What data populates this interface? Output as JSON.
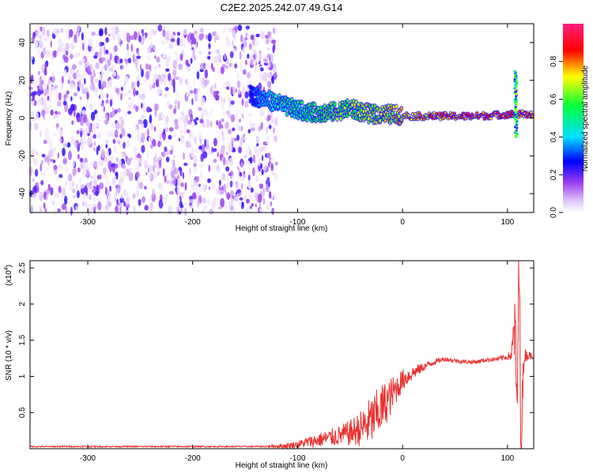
{
  "title": "C2E2.2025.242.07.49.G14",
  "chart_data": [
    {
      "type": "heatmap",
      "title": "C2E2.2025.242.07.49.G14",
      "xlabel": "Height of straight line (km)",
      "ylabel": "Frequency (Hz)",
      "xlim": [
        -355,
        125
      ],
      "ylim": [
        -50,
        50
      ],
      "xticks": [
        -300,
        -200,
        -100,
        0,
        100
      ],
      "yticks": [
        -40,
        -20,
        0,
        20,
        40
      ],
      "colorbar": {
        "label": "Normalized spectral amplitude",
        "range": [
          0,
          1
        ],
        "ticks": [
          "0.0",
          "0.2",
          "0.4",
          "0.6",
          "0.8"
        ],
        "colors": [
          "#ffffff",
          "#9a3cf0",
          "#0000ff",
          "#00e0ff",
          "#00ff40",
          "#ffff00",
          "#ff0000",
          "#ff2080"
        ]
      },
      "noise_region": {
        "x": [
          -355,
          -120
        ],
        "y": [
          -50,
          48
        ],
        "amplitude": [
          0.02,
          0.25
        ]
      },
      "ridge": [
        {
          "x": -145,
          "f": 12,
          "amp": 0.3
        },
        {
          "x": -130,
          "f": 10,
          "amp": 0.45
        },
        {
          "x": -110,
          "f": 6,
          "amp": 0.55
        },
        {
          "x": -90,
          "f": 3,
          "amp": 0.6
        },
        {
          "x": -70,
          "f": 3,
          "amp": 0.65
        },
        {
          "x": -50,
          "f": 5,
          "amp": 0.7
        },
        {
          "x": -30,
          "f": 2,
          "amp": 0.75
        },
        {
          "x": -10,
          "f": 2,
          "amp": 0.8
        },
        {
          "x": 10,
          "f": 1,
          "amp": 0.85
        },
        {
          "x": 40,
          "f": 1,
          "amp": 0.92
        },
        {
          "x": 70,
          "f": 1,
          "amp": 0.95
        },
        {
          "x": 100,
          "f": 2,
          "amp": 0.95
        },
        {
          "x": 125,
          "f": 2,
          "amp": 0.95
        }
      ],
      "excursion": {
        "x": 108,
        "f_range": [
          -10,
          25
        ]
      }
    },
    {
      "type": "line",
      "xlabel": "Height of straight line (km)",
      "ylabel": "SNR (10 * v/v)",
      "scale_label": "(x10",
      "scale_exp": "4",
      "scale_close": ")",
      "xlim": [
        -355,
        125
      ],
      "ylim": [
        0,
        2.6
      ],
      "xticks": [
        -300,
        -200,
        -100,
        0,
        100
      ],
      "yticks": [
        0.5,
        1.0,
        1.5,
        2.0,
        2.5
      ],
      "series": [
        {
          "name": "SNR",
          "color": "#e8302e",
          "x": [
            -355,
            -300,
            -200,
            -130,
            -110,
            -100,
            -90,
            -80,
            -70,
            -60,
            -50,
            -40,
            -30,
            -20,
            -10,
            0,
            10,
            20,
            30,
            40,
            50,
            60,
            70,
            80,
            90,
            100,
            104,
            107,
            109,
            111,
            113,
            116,
            125
          ],
          "y": [
            0.03,
            0.03,
            0.03,
            0.03,
            0.04,
            0.06,
            0.09,
            0.12,
            0.15,
            0.18,
            0.22,
            0.28,
            0.38,
            0.55,
            0.75,
            0.95,
            1.05,
            1.13,
            1.2,
            1.24,
            1.22,
            1.2,
            1.2,
            1.23,
            1.24,
            1.27,
            1.3,
            1.7,
            0.5,
            2.5,
            0.2,
            1.3,
            1.28
          ],
          "noise": [
            0.01,
            0.01,
            0.01,
            0.01,
            0.04,
            0.05,
            0.08,
            0.1,
            0.12,
            0.14,
            0.18,
            0.25,
            0.35,
            0.35,
            0.25,
            0.15,
            0.1,
            0.06,
            0.04,
            0.03,
            0.03,
            0.03,
            0.03,
            0.03,
            0.03,
            0.04,
            0.1,
            0.6,
            0.6,
            0.6,
            0.6,
            0.1,
            0.03
          ]
        }
      ]
    }
  ]
}
